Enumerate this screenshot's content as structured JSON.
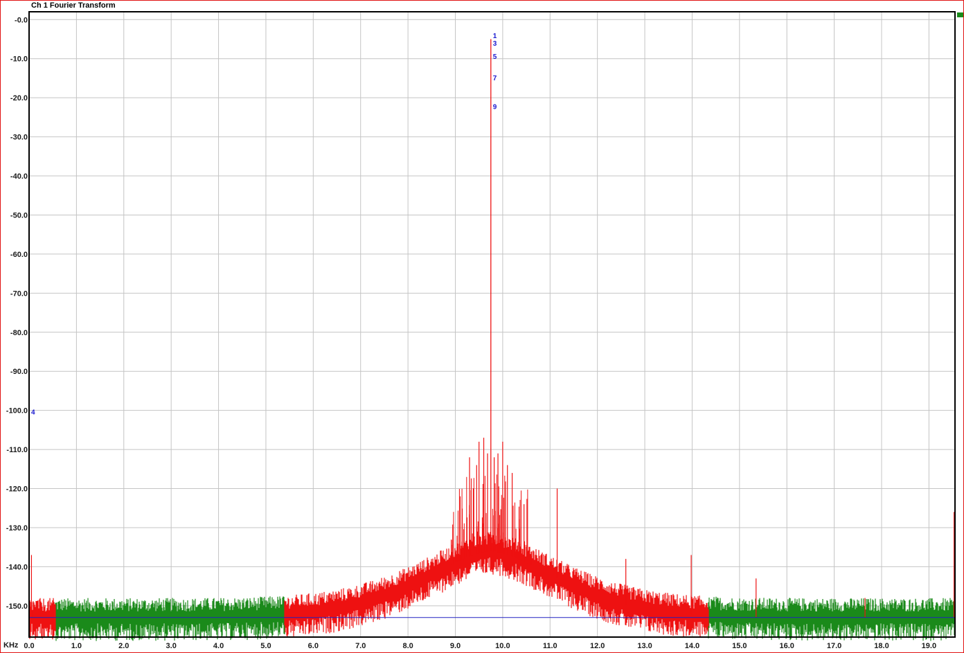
{
  "window": {
    "title": "Ch 1 Fourier Transform"
  },
  "chart_data": {
    "type": "line",
    "title": "Ch 1 Fourier Transform",
    "xlabel": "KHz",
    "ylabel": "",
    "xlim": [
      0.0,
      19.55
    ],
    "ylim": [
      -158.0,
      2.0
    ],
    "grid": true,
    "x_ticks": [
      "0.0",
      "1.0",
      "2.0",
      "3.0",
      "4.0",
      "5.0",
      "6.0",
      "7.0",
      "8.0",
      "9.0",
      "10.0",
      "11.0",
      "12.0",
      "13.0",
      "14.0",
      "15.0",
      "16.0",
      "17.0",
      "18.0",
      "19.0"
    ],
    "x_tick_values": [
      0,
      1,
      2,
      3,
      4,
      5,
      6,
      7,
      8,
      9,
      10,
      11,
      12,
      13,
      14,
      15,
      16,
      17,
      18,
      19
    ],
    "y_ticks": [
      "-0.0",
      "-10.0",
      "-20.0",
      "-30.0",
      "-40.0",
      "-50.0",
      "-60.0",
      "-70.0",
      "-80.0",
      "-90.0",
      "-100.0",
      "-110.0",
      "-120.0",
      "-130.0",
      "-140.0",
      "-150.0"
    ],
    "y_tick_values": [
      0,
      -10,
      -20,
      -30,
      -40,
      -50,
      -60,
      -70,
      -80,
      -90,
      -100,
      -110,
      -120,
      -130,
      -140,
      -150
    ],
    "reference_level_db": -153.0,
    "series": [
      {
        "color": "#1a8a1a",
        "segments": [
          [
            0.55,
            5.4
          ],
          [
            14.35,
            19.55
          ]
        ],
        "noise_floor_db": -153.0
      },
      {
        "color": "#ee1111",
        "segments": [
          [
            0.0,
            0.55
          ],
          [
            5.4,
            14.35
          ]
        ],
        "fundamental_khz": 9.75,
        "fundamental_db": -5.0,
        "skirt_peak_db": -136.0,
        "noise_floor_db": -153.0,
        "spurs": [
          {
            "x": 0.0,
            "y": -100.0
          },
          {
            "x": 0.05,
            "y": -137.0
          },
          {
            "x": 9.3,
            "y": -112.0
          },
          {
            "x": 9.45,
            "y": -114.0
          },
          {
            "x": 9.5,
            "y": -108.0
          },
          {
            "x": 9.6,
            "y": -107.0
          },
          {
            "x": 9.68,
            "y": -111.0
          },
          {
            "x": 9.82,
            "y": -112.0
          },
          {
            "x": 9.9,
            "y": -111.0
          },
          {
            "x": 10.0,
            "y": -108.0
          },
          {
            "x": 10.1,
            "y": -114.0
          },
          {
            "x": 10.2,
            "y": -116.0
          },
          {
            "x": 10.45,
            "y": -124.0
          },
          {
            "x": 11.15,
            "y": -120.0
          },
          {
            "x": 12.6,
            "y": -138.0
          },
          {
            "x": 13.98,
            "y": -137.0
          },
          {
            "x": 15.35,
            "y": -143.0
          },
          {
            "x": 17.65,
            "y": -148.0
          },
          {
            "x": 19.53,
            "y": -126.0
          }
        ]
      }
    ],
    "harmonic_markers": [
      {
        "label": "1",
        "x_khz": 9.75,
        "y_db": -4.0
      },
      {
        "label": "3",
        "x_khz": 9.75,
        "y_db": -6.0
      },
      {
        "label": "5",
        "x_khz": 9.75,
        "y_db": -9.3
      },
      {
        "label": "7",
        "x_khz": 9.75,
        "y_db": -14.8
      },
      {
        "label": "9",
        "x_khz": 9.75,
        "y_db": -22.2
      },
      {
        "label": "4",
        "x_khz": 0.0,
        "y_db": -100.3
      }
    ]
  }
}
